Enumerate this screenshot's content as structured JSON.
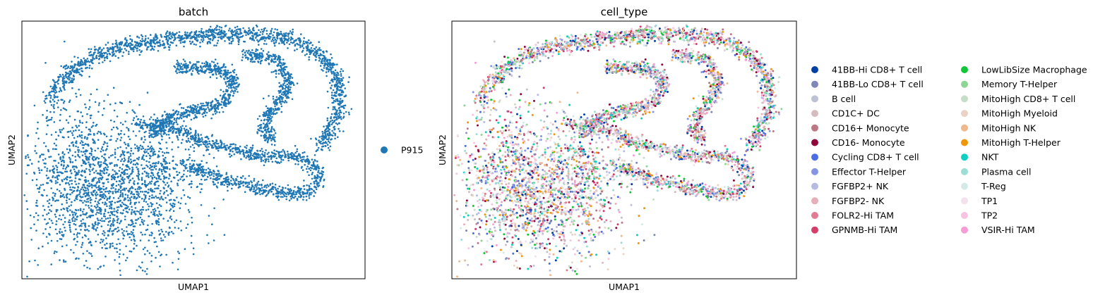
{
  "chart_data": [
    {
      "type": "scatter",
      "title": "batch",
      "xlabel": "UMAP1",
      "ylabel": "UMAP2",
      "xticks": [],
      "yticks": [],
      "grid": false,
      "legend_position": "right",
      "color_by": "batch",
      "series": [
        {
          "name": "P915",
          "color": "#1f77b4"
        }
      ]
    },
    {
      "type": "scatter",
      "title": "cell_type",
      "xlabel": "UMAP1",
      "ylabel": "UMAP2",
      "xticks": [],
      "yticks": [],
      "grid": false,
      "legend_position": "right",
      "legend_columns": 2,
      "color_by": "cell_type",
      "series": [
        {
          "name": "41BB-Hi CD8+ T cell",
          "color": "#023fa5"
        },
        {
          "name": "41BB-Lo CD8+ T cell",
          "color": "#7d87b9"
        },
        {
          "name": "B cell",
          "color": "#bec1d4"
        },
        {
          "name": "CD1C+ DC",
          "color": "#d6bcc0"
        },
        {
          "name": "CD16+ Monocyte",
          "color": "#bb7784"
        },
        {
          "name": "CD16- Monocyte",
          "color": "#8e063b"
        },
        {
          "name": "Cycling CD8+ T cell",
          "color": "#4a6fe3"
        },
        {
          "name": "Effector T-Helper",
          "color": "#8595e1"
        },
        {
          "name": "FGFBP2+ NK",
          "color": "#b5bbe3"
        },
        {
          "name": "FGFBP2- NK",
          "color": "#e6afb9"
        },
        {
          "name": "FOLR2-Hi TAM",
          "color": "#e07b91"
        },
        {
          "name": "GPNMB-Hi TAM",
          "color": "#d33f6a"
        },
        {
          "name": "LowLibSize Macrophage",
          "color": "#11c638"
        },
        {
          "name": "Memory T-Helper",
          "color": "#8dd593"
        },
        {
          "name": "MitoHigh CD8+ T cell",
          "color": "#c6dec7"
        },
        {
          "name": "MitoHigh Myeloid",
          "color": "#ead3c6"
        },
        {
          "name": "MitoHigh NK",
          "color": "#f0b98d"
        },
        {
          "name": "MitoHigh T-Helper",
          "color": "#ef9708"
        },
        {
          "name": "NKT",
          "color": "#0fcfc0"
        },
        {
          "name": "Plasma cell",
          "color": "#9cded6"
        },
        {
          "name": "T-Reg",
          "color": "#d5eae7"
        },
        {
          "name": "TP1",
          "color": "#f3e1eb"
        },
        {
          "name": "TP2",
          "color": "#f6c4e1"
        },
        {
          "name": "VSIR-Hi TAM",
          "color": "#f79cd4"
        }
      ]
    }
  ]
}
